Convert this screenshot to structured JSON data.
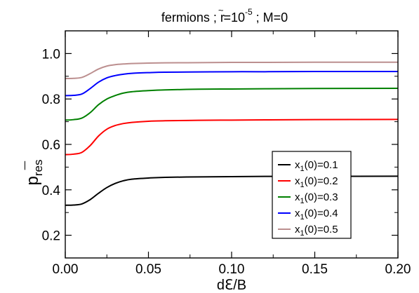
{
  "chart_data": {
    "type": "line",
    "title": {
      "main": "fermions ; ",
      "r_symbol": "r",
      "r_tilde": "~",
      "r_eq": "=10",
      "r_exp": "-5",
      "tail": " ; M=0"
    },
    "xlabel": "dℇ/B",
    "ylabel": {
      "main": "p",
      "sub": "res"
    },
    "xlim": [
      0.0,
      0.2
    ],
    "ylim": [
      0.1,
      1.1
    ],
    "xticks": [
      "0.00",
      "0.05",
      "0.10",
      "0.15",
      "0.20"
    ],
    "xtick_values": [
      0.0,
      0.05,
      0.1,
      0.15,
      0.2
    ],
    "yticks": [
      "0.2",
      "0.4",
      "0.6",
      "0.8",
      "1.0"
    ],
    "ytick_values": [
      0.2,
      0.4,
      0.6,
      0.8,
      1.0
    ],
    "grid": false,
    "legend_position": "lower-right",
    "series": [
      {
        "name": {
          "a": "x",
          "b": "1",
          "c": "(0)=0.1"
        },
        "color": "#000000",
        "x": [
          0.0,
          0.005,
          0.01,
          0.015,
          0.02,
          0.025,
          0.03,
          0.035,
          0.04,
          0.05,
          0.06,
          0.08,
          0.1,
          0.12,
          0.15,
          0.2
        ],
        "y": [
          0.332,
          0.333,
          0.338,
          0.357,
          0.385,
          0.41,
          0.428,
          0.44,
          0.447,
          0.452,
          0.455,
          0.457,
          0.458,
          0.459,
          0.459,
          0.46
        ]
      },
      {
        "name": {
          "a": "x",
          "b": "1",
          "c": "(0)=0.2"
        },
        "color": "#ff0000",
        "x": [
          0.0,
          0.005,
          0.01,
          0.015,
          0.02,
          0.025,
          0.03,
          0.035,
          0.04,
          0.05,
          0.06,
          0.08,
          0.1,
          0.12,
          0.15,
          0.2
        ],
        "y": [
          0.555,
          0.557,
          0.565,
          0.595,
          0.637,
          0.667,
          0.683,
          0.692,
          0.697,
          0.702,
          0.704,
          0.706,
          0.707,
          0.708,
          0.709,
          0.71
        ]
      },
      {
        "name": {
          "a": "x",
          "b": "1",
          "c": "(0)=0.3"
        },
        "color": "#008000",
        "x": [
          0.0,
          0.005,
          0.01,
          0.015,
          0.02,
          0.025,
          0.03,
          0.035,
          0.04,
          0.05,
          0.06,
          0.08,
          0.1,
          0.12,
          0.15,
          0.2
        ],
        "y": [
          0.707,
          0.709,
          0.716,
          0.74,
          0.775,
          0.8,
          0.815,
          0.826,
          0.832,
          0.837,
          0.84,
          0.843,
          0.844,
          0.845,
          0.846,
          0.847
        ]
      },
      {
        "name": {
          "a": "x",
          "b": "1",
          "c": "(0)=0.4"
        },
        "color": "#0000ff",
        "x": [
          0.0,
          0.005,
          0.01,
          0.015,
          0.02,
          0.025,
          0.03,
          0.035,
          0.04,
          0.05,
          0.06,
          0.08,
          0.1,
          0.12,
          0.15,
          0.2
        ],
        "y": [
          0.815,
          0.816,
          0.822,
          0.846,
          0.874,
          0.893,
          0.903,
          0.909,
          0.913,
          0.916,
          0.918,
          0.919,
          0.92,
          0.92,
          0.921,
          0.921
        ]
      },
      {
        "name": {
          "a": "x",
          "b": "1",
          "c": "(0)=0.5"
        },
        "color": "#bc8f8f",
        "x": [
          0.0,
          0.005,
          0.01,
          0.015,
          0.02,
          0.025,
          0.03,
          0.035,
          0.04,
          0.05,
          0.06,
          0.08,
          0.1,
          0.12,
          0.15,
          0.2
        ],
        "y": [
          0.89,
          0.891,
          0.895,
          0.912,
          0.932,
          0.945,
          0.951,
          0.954,
          0.956,
          0.958,
          0.959,
          0.96,
          0.961,
          0.961,
          0.962,
          0.962
        ]
      }
    ]
  }
}
